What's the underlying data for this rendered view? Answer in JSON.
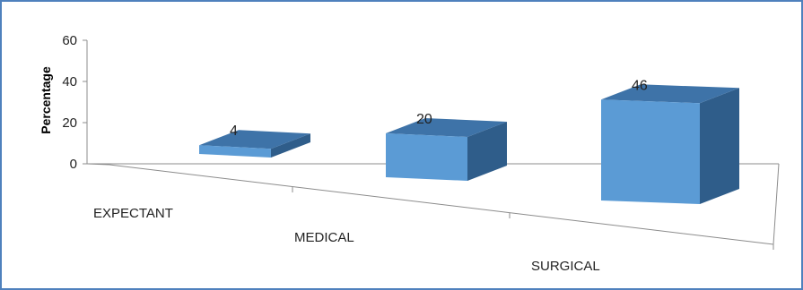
{
  "chart_data": {
    "type": "bar",
    "title": "",
    "xlabel": "",
    "ylabel": "Percentage",
    "categories": [
      "EXPECTANT",
      "MEDICAL",
      "SURGICAL"
    ],
    "values": [
      4,
      20,
      46
    ],
    "ylim": [
      0,
      60
    ],
    "yticks": [
      "0",
      "20",
      "40",
      "60"
    ],
    "grid": false,
    "legend": "none",
    "colors": {
      "bar_front": "#5B9BD5",
      "bar_top": "#3E73A8",
      "bar_side": "#2F5D8A",
      "axis": "#8C8C8C",
      "frame": "#4F81BD"
    }
  }
}
